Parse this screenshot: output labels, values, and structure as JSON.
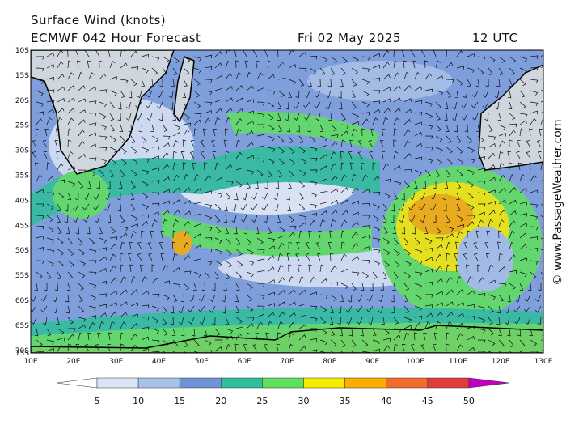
{
  "header": {
    "title": "Surface Wind (knots)",
    "model": "ECMWF 042 Hour Forecast",
    "date": "Fri 02 May 2025",
    "time": "12 UTC"
  },
  "map": {
    "lat_labels": [
      "10S",
      "15S",
      "20S",
      "25S",
      "30S",
      "35S",
      "40S",
      "45S",
      "50S",
      "55S",
      "60S",
      "65S",
      "70S",
      "75S"
    ],
    "lon_labels": [
      "10E",
      "20E",
      "30E",
      "40E",
      "50E",
      "60E",
      "70E",
      "80E",
      "90E",
      "100E",
      "110E",
      "120E",
      "130E"
    ]
  },
  "legend": {
    "values": [
      5,
      10,
      15,
      20,
      25,
      30,
      35,
      40,
      45,
      50
    ],
    "colors": [
      "#ffffff",
      "#dae4f4",
      "#a9c1e8",
      "#6f94d6",
      "#2fbf9c",
      "#5fe05c",
      "#f6ec00",
      "#fbae00",
      "#f26a2c",
      "#e33a3a",
      "#b30000",
      "#c000c0"
    ]
  },
  "watermark": "© www.PassageWeather.com"
}
